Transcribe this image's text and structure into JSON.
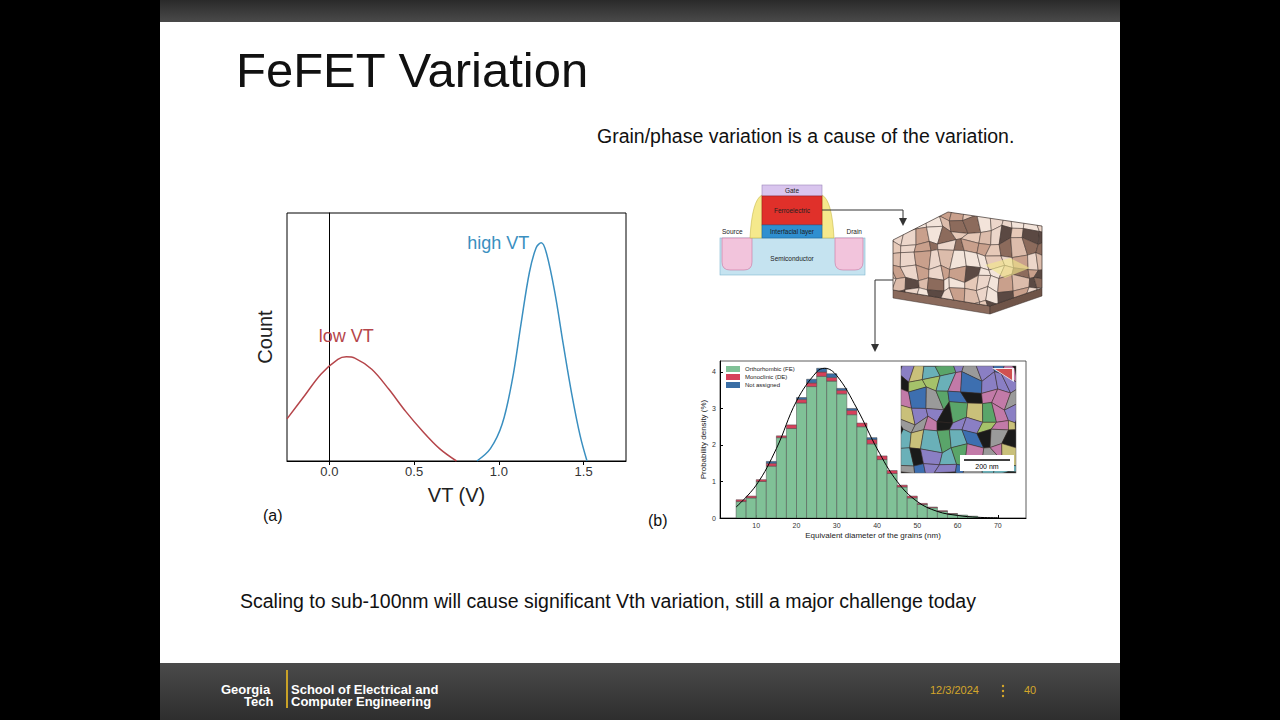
{
  "slide": {
    "title": "FeFET Variation",
    "subtitle": "Grain/phase variation is a cause of the variation.",
    "caption": "Scaling to sub-100nm will cause significant Vth variation, still a major challenge today",
    "panel_labels": [
      "(a)",
      "(b)"
    ],
    "device": {
      "gate": "Gate",
      "ferroelectric": "Ferroelectric",
      "interfacial_layer": "Interfacial layer",
      "source": "Source",
      "drain": "Drain",
      "semiconductor": "Semiconductor"
    },
    "inset": {
      "scale_bar": "200 nm"
    },
    "footer": {
      "logo": [
        "Georgia",
        "Tech"
      ],
      "school": [
        "School of Electrical and",
        "Computer Engineering"
      ],
      "date": "12/3/2024",
      "page": "40"
    }
  },
  "chart_data": [
    {
      "type": "line",
      "xlabel": "VT (V)",
      "ylabel": "Count",
      "xlim": [
        -0.25,
        1.75
      ],
      "xticks": [
        {
          "value": 0,
          "label": "0.0"
        },
        0.5,
        {
          "value": 1,
          "label": "1.0"
        },
        1.5
      ],
      "ylim": [
        0,
        1
      ],
      "tick_labels": "x",
      "grid": false,
      "series": [
        {
          "name": "low VT",
          "color": "#b5454a",
          "x": [
            -0.25,
            -0.15,
            -0.05,
            0.05,
            0.1,
            0.15,
            0.25,
            0.35,
            0.45,
            0.55,
            0.65,
            0.75
          ],
          "values": [
            0.17,
            0.26,
            0.35,
            0.41,
            0.42,
            0.415,
            0.37,
            0.29,
            0.2,
            0.12,
            0.05,
            0
          ]
        },
        {
          "name": "high VT",
          "color": "#3a8fc0",
          "x": [
            0.87,
            0.95,
            1.02,
            1.08,
            1.13,
            1.18,
            1.22,
            1.25,
            1.28,
            1.33,
            1.38,
            1.43,
            1.48,
            1.52
          ],
          "values": [
            0,
            0.05,
            0.15,
            0.33,
            0.55,
            0.76,
            0.86,
            0.88,
            0.84,
            0.68,
            0.47,
            0.27,
            0.1,
            0
          ]
        }
      ]
    },
    {
      "type": "histogram",
      "xlabel": "Equivalent diameter of the grains (nm)",
      "ylabel": "Probability density (%)",
      "xlim": [
        1,
        77
      ],
      "xticks": [
        10,
        20,
        30,
        40,
        50,
        60,
        70
      ],
      "ylim": [
        0,
        4.3
      ],
      "yticks": [
        0,
        1,
        2,
        3,
        4
      ],
      "grid": false,
      "stacked": true,
      "legend": "top-left",
      "bins": [
        5,
        7.5,
        10,
        12.5,
        15,
        17.5,
        20,
        22.5,
        25,
        27.5,
        30,
        32.5,
        35,
        37.5,
        40,
        42.5,
        45,
        47.5,
        50,
        52.5,
        55,
        57.5,
        60,
        62.5,
        65
      ],
      "series": [
        {
          "name": "Orthorhombic (FE)",
          "color": "#80c197",
          "values": [
            0.45,
            0.55,
            1.0,
            1.42,
            2.2,
            2.45,
            3.15,
            3.6,
            3.88,
            3.75,
            3.4,
            2.83,
            2.5,
            2.03,
            1.6,
            1.22,
            0.85,
            0.55,
            0.37,
            0.28,
            0.18,
            0.11,
            0.08,
            0.05
          ]
        },
        {
          "name": "Monoclinic (DE)",
          "color": "#d6405a",
          "values": [
            0.05,
            0.05,
            0.05,
            0.08,
            0.05,
            0.1,
            0.1,
            0.1,
            0.12,
            0.1,
            0.1,
            0.12,
            0.1,
            0.12,
            0.1,
            0.08,
            0.05,
            0.05,
            0.03,
            0.02,
            0.02,
            0.01,
            0,
            0
          ]
        },
        {
          "name": "Not assigned",
          "color": "#3a6ea5",
          "values": [
            0,
            0,
            0,
            0.05,
            0,
            0,
            0.05,
            0.1,
            0.1,
            0.1,
            0.05,
            0.05,
            0,
            0.05,
            0,
            0,
            0,
            0,
            0,
            0,
            0,
            0,
            0,
            0
          ]
        },
        {
          "type": "line",
          "color": "#000000",
          "x": [
            5,
            10,
            15,
            20,
            25,
            27,
            30,
            35,
            40,
            45,
            50,
            55,
            60,
            65,
            70
          ],
          "values": [
            0.3,
            0.9,
            1.9,
            3.2,
            4.0,
            4.1,
            3.9,
            3.0,
            1.9,
            1.0,
            0.45,
            0.18,
            0.07,
            0.02,
            0.005
          ]
        }
      ]
    }
  ]
}
